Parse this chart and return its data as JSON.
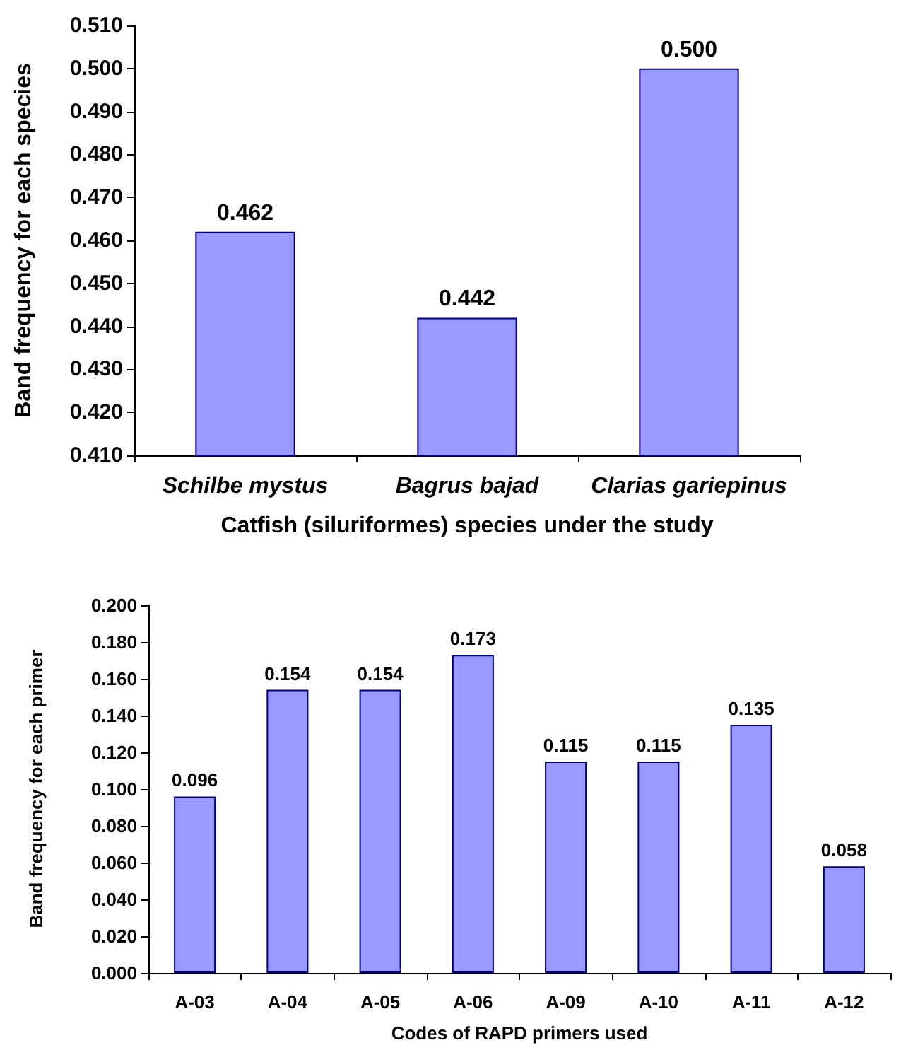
{
  "chart_data": [
    {
      "type": "bar",
      "xlabel": "Catfish (siluriformes) species under the study",
      "ylabel": "Band frequency for each species",
      "categories": [
        "Schilbe mystus",
        "Bagrus bajad",
        "Clarias gariepinus"
      ],
      "series": [
        {
          "color": "#9999ff",
          "values": [
            0.462,
            0.442,
            0.5
          ],
          "value_labels": [
            "0.462",
            "0.442",
            "0.500"
          ]
        }
      ],
      "ylim": [
        0.41,
        0.51
      ],
      "yticks": [
        {
          "value": 0.41,
          "label": "0.410"
        },
        {
          "value": 0.42,
          "label": "0.420"
        },
        {
          "value": 0.43,
          "label": "0.430"
        },
        {
          "value": 0.44,
          "label": "0.440"
        },
        {
          "value": 0.45,
          "label": "0.450"
        },
        {
          "value": 0.46,
          "label": "0.460"
        },
        {
          "value": 0.47,
          "label": "0.470"
        },
        {
          "value": 0.48,
          "label": "0.480"
        },
        {
          "value": 0.49,
          "label": "0.490"
        },
        {
          "value": 0.5,
          "label": "0.500"
        },
        {
          "value": 0.51,
          "label": "0.510"
        }
      ],
      "grid": false
    },
    {
      "type": "bar",
      "xlabel": "Codes of RAPD primers used",
      "ylabel": "Band frequency for each primer",
      "categories": [
        "A-03",
        "A-04",
        "A-05",
        "A-06",
        "A-09",
        "A-10",
        "A-11",
        "A-12"
      ],
      "series": [
        {
          "color": "#9999ff",
          "values": [
            0.096,
            0.154,
            0.154,
            0.173,
            0.115,
            0.115,
            0.135,
            0.058
          ],
          "value_labels": [
            "0.096",
            "0.154",
            "0.154",
            "0.173",
            "0.115",
            "0.115",
            "0.135",
            "0.058"
          ]
        }
      ],
      "ylim": [
        0,
        0.2
      ],
      "yticks": [
        {
          "value": 0,
          "label": "0.000"
        },
        {
          "value": 0.02,
          "label": "0.020"
        },
        {
          "value": 0.04,
          "label": "0.040"
        },
        {
          "value": 0.06,
          "label": "0.060"
        },
        {
          "value": 0.08,
          "label": "0.080"
        },
        {
          "value": 0.1,
          "label": "0.100"
        },
        {
          "value": 0.12,
          "label": "0.120"
        },
        {
          "value": 0.14,
          "label": "0.140"
        },
        {
          "value": 0.16,
          "label": "0.160"
        },
        {
          "value": 0.18,
          "label": "0.180"
        },
        {
          "value": 0.2,
          "label": "0.200"
        }
      ],
      "grid": false
    }
  ]
}
